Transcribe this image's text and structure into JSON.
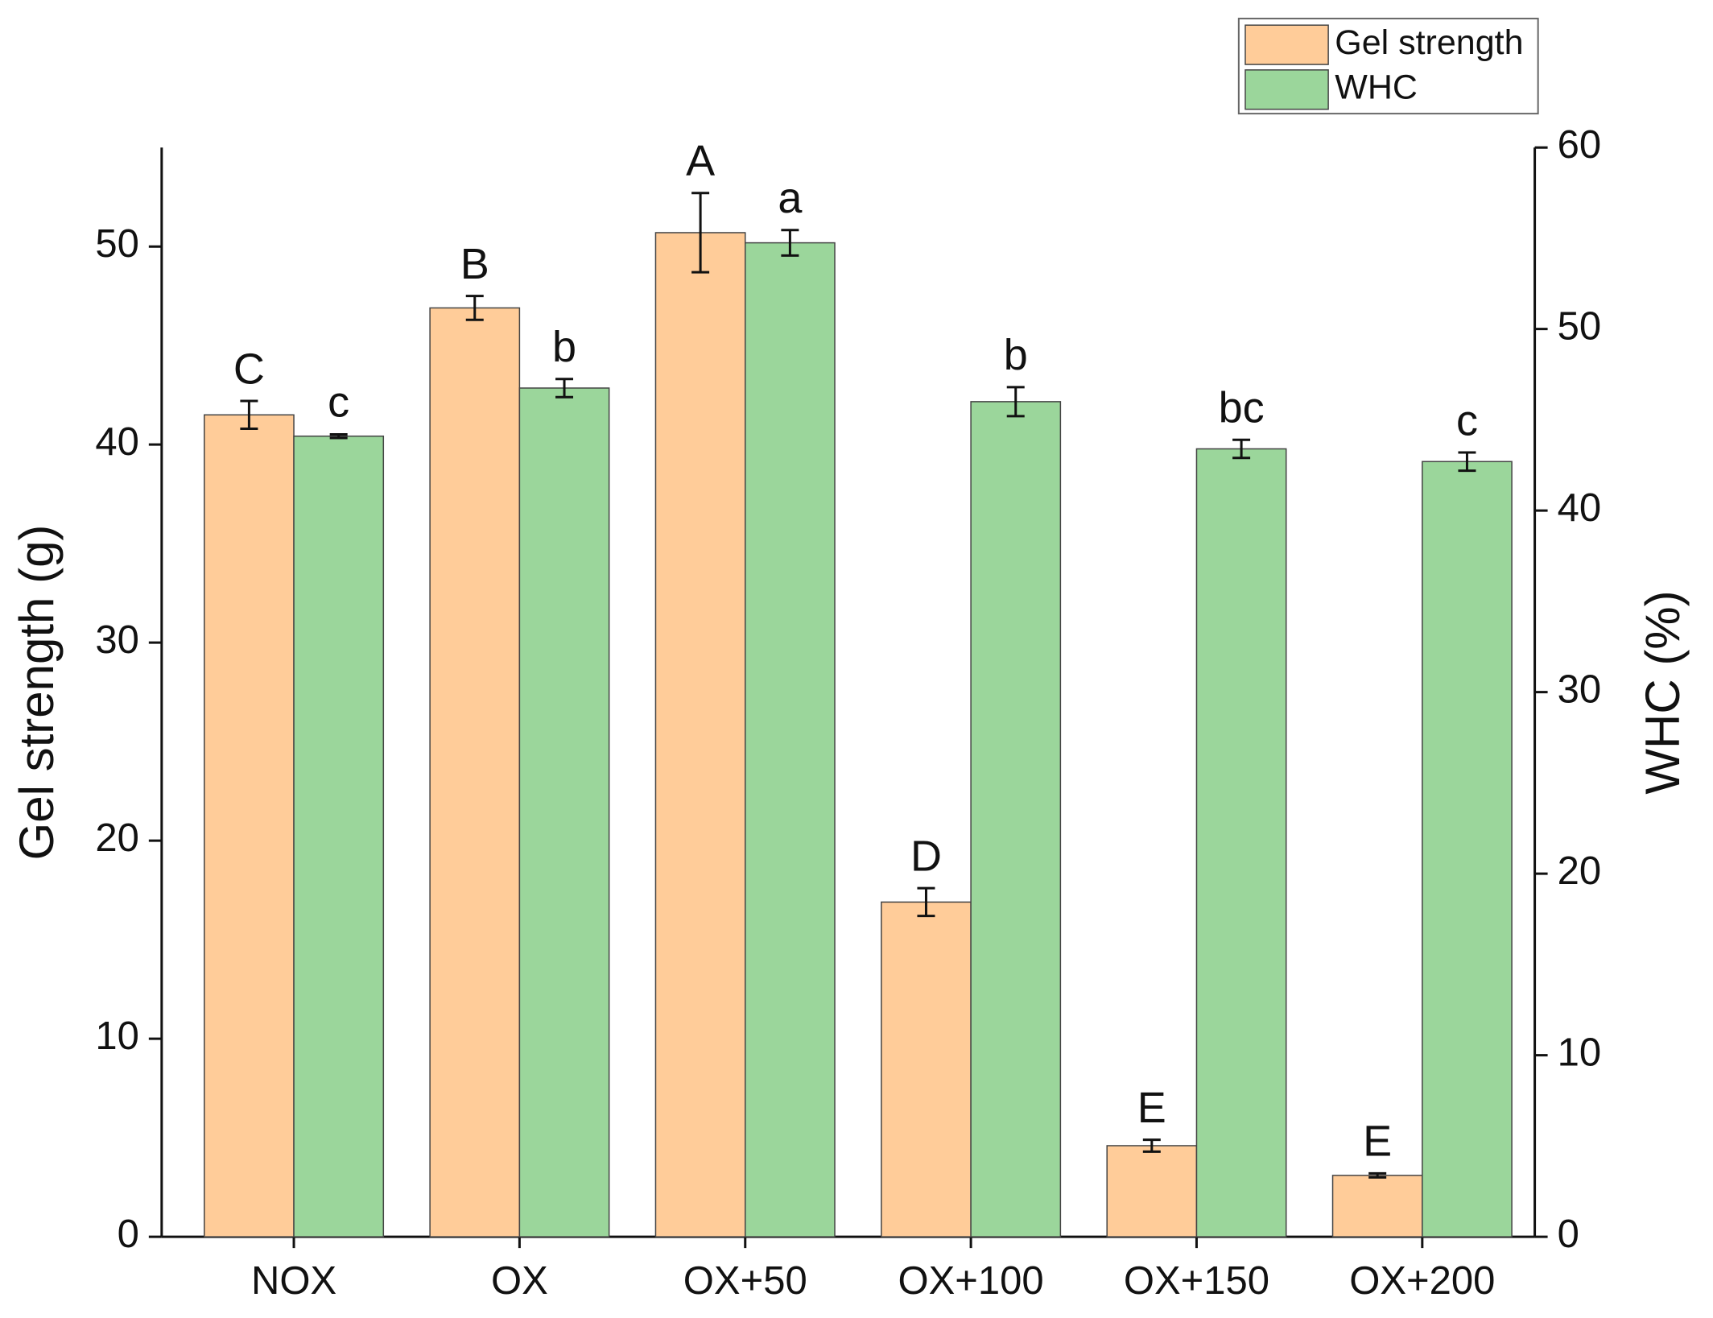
{
  "chart_data": {
    "type": "bar",
    "categories": [
      "NOX",
      "OX",
      "OX+50",
      "OX+100",
      "OX+150",
      "OX+200"
    ],
    "ylabel": "Gel strength (g)",
    "y2label": "WHC (%)",
    "ylim": [
      0,
      55
    ],
    "yticks": [
      0,
      10,
      20,
      30,
      40,
      50
    ],
    "y2lim": [
      0,
      60
    ],
    "y2ticks": [
      0,
      10,
      20,
      30,
      40,
      50,
      60
    ],
    "legend": "top-right",
    "series": [
      {
        "name": "Gel strength",
        "color": "#ffcc99",
        "axis": "y",
        "values": [
          41.5,
          46.9,
          50.7,
          16.9,
          4.6,
          3.1
        ],
        "errors": [
          0.7,
          0.6,
          2.0,
          0.7,
          0.3,
          0.1
        ],
        "letters": [
          "C",
          "B",
          "A",
          "D",
          "E",
          "E"
        ]
      },
      {
        "name": "WHC",
        "color": "#9bd69b",
        "axis": "y2",
        "values": [
          44.1,
          46.75,
          54.75,
          46.0,
          43.4,
          42.7
        ],
        "errors": [
          0.1,
          0.5,
          0.7,
          0.8,
          0.5,
          0.5
        ],
        "letters": [
          "c",
          "b",
          "a",
          "b",
          "bc",
          "c"
        ]
      }
    ]
  }
}
